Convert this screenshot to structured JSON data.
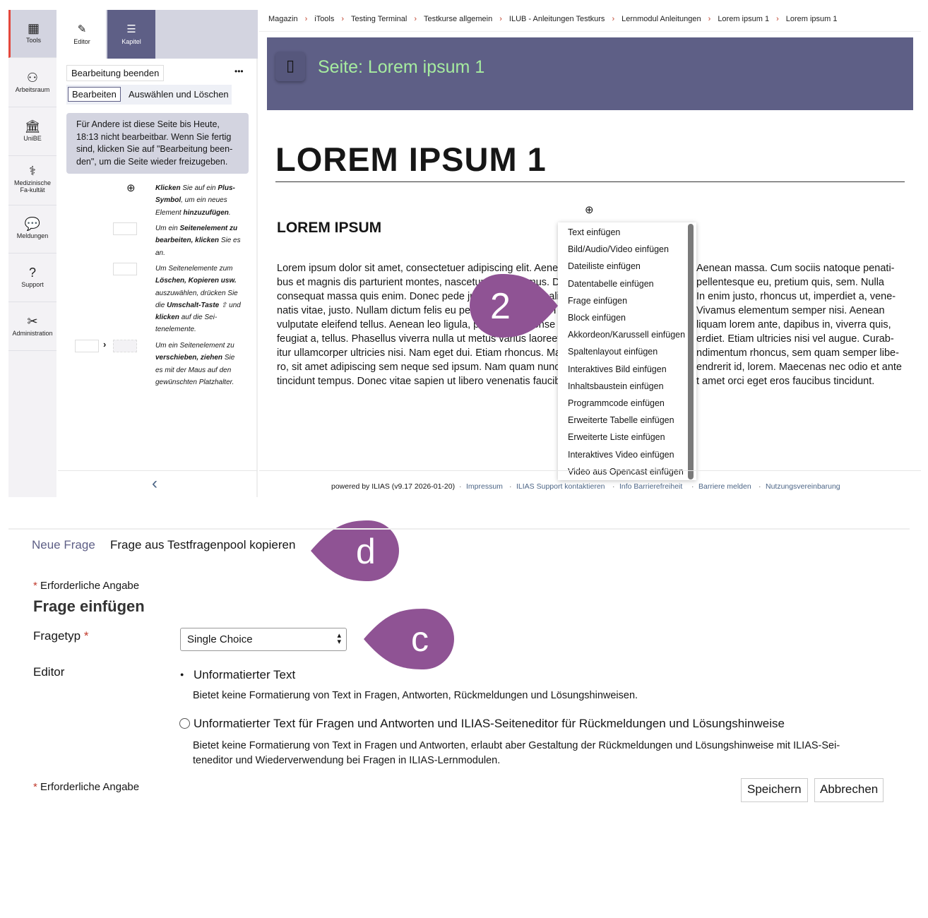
{
  "sidebar": {
    "items": [
      {
        "label": "Tools",
        "icon": "grid-icon"
      },
      {
        "label": "Arbeitsraum",
        "icon": "user-icon"
      },
      {
        "label": "UniBE",
        "icon": "building-icon"
      },
      {
        "label": "Medizinische Fa-kultät",
        "icon": "caduceus-icon"
      },
      {
        "label": "Meldungen",
        "icon": "chat-icon"
      },
      {
        "label": "Support",
        "icon": "question-icon"
      },
      {
        "label": "Administration",
        "icon": "tools-icon"
      }
    ]
  },
  "panel": {
    "tabs": [
      {
        "label": "Editor"
      },
      {
        "label": "Kapitel"
      }
    ],
    "finish_button": "Bearbeitung beenden",
    "more": "•••",
    "mode_edit": "Bearbeiten",
    "mode_select": "Auswählen und Löschen",
    "note": "Für Andere ist diese Seite bis Heute, 18:13 nicht bearbeitbar. Wenn Sie fertig sind, klicken Sie auf \"Bearbeitung been-den\", um die Seite wieder freizugeben.",
    "hints": [
      "<b>Klicken</b> Sie auf ein <b>Plus-Symbol</b>, um ein neues Element <b>hinzuzufügen</b>.",
      "Um ein <b>Seitenelement zu bearbeiten, klicken</b> Sie es an.",
      "Um Seitenelemente zum <b>Löschen, Kopieren usw.</b> auszuwählen, drücken Sie die <b>Umschalt-Taste</b> ⇧ und <b>klicken</b> auf die Sei-tenelemente.",
      "Um ein Seitenelement zu <b>verschieben, ziehen</b> Sie es mit der Maus auf den gewünschten Platzhalter."
    ],
    "collapse": "‹"
  },
  "breadcrumb": [
    "Magazin",
    "iTools",
    "Testing Terminal",
    "Testkurse allgemein",
    "ILUB - Anleitungen Testkurs",
    "Lernmodul Anleitungen",
    "Lorem ipsum 1",
    "Lorem ipsum 1"
  ],
  "header": {
    "title": "Seite: Lorem ipsum 1",
    "title_color": "#a6ec9f",
    "bg": "#5e5f86"
  },
  "content": {
    "h1": "LOREM IPSUM 1",
    "h2": "LOREM IPSUM",
    "lines": [
      {
        "l": "Lorem ipsum dolor sit amet, consectetuer adipiscing elit. Aene",
        "r": "Aenean massa. Cum sociis natoque penati-"
      },
      {
        "l": "bus et magnis dis parturient montes, nascetur ridiculus mus. D",
        "r": "pellentesque eu, pretium quis, sem. Nulla"
      },
      {
        "l": "consequat massa quis enim. Donec pede justo, fringilla vel, ali",
        "r": "In enim justo, rhoncus ut, imperdiet a, vene-"
      },
      {
        "l": "natis vitae, justo. Nullam dictum felis eu pede mollis pretium. I",
        "r": "Vivamus elementum semper nisi. Aenean"
      },
      {
        "l": "vulputate eleifend tellus. Aenean leo ligula, porttitor eu, conse",
        "r": "liquam lorem ante, dapibus in, viverra quis,"
      },
      {
        "l": "feugiat a, tellus. Phasellus viverra nulla ut metus varius laoreet",
        "r": "erdiet. Etiam ultricies nisi vel augue. Curab-"
      },
      {
        "l": "itur ullamcorper ultricies nisi. Nam eget dui. Etiam rhoncus. Ma",
        "r": "ndimentum rhoncus, sem quam semper libe-"
      },
      {
        "l": "ro, sit amet adipiscing sem neque sed ipsum. Nam quam nunc",
        "r": "endrerit id, lorem. Maecenas nec odio et ante"
      },
      {
        "l": "tincidunt tempus. Donec vitae sapien ut libero venenatis faucib",
        "r": "t amet orci eget eros faucibus tincidunt."
      }
    ]
  },
  "menu": [
    "Text einfügen",
    "Bild/Audio/Video einfügen",
    "Dateiliste einfügen",
    "Datentabelle einfügen",
    "Frage einfügen",
    "Block einfügen",
    "Akkordeon/Karussell einfügen",
    "Spaltenlayout einfügen",
    "Interaktives Bild einfügen",
    "Inhaltsbaustein einfügen",
    "Programmcode einfügen",
    "Erweiterte Tabelle einfügen",
    "Erweiterte Liste einfügen",
    "Interaktives Video einfügen",
    "Video aus Opencast einfügen"
  ],
  "footer": {
    "powered": "powered by ILIAS (v9.17 2026-01-20)",
    "links": [
      "Impressum",
      "ILIAS Support kontaktieren",
      "Info Barrierefreiheit",
      "Barriere melden",
      "Nutzungsvereinbarung"
    ]
  },
  "callouts": {
    "two": "2",
    "d": "d",
    "c": "c",
    "color": "#8f5394"
  },
  "form": {
    "tabs": [
      "Neue Frage",
      "Frage aus Testfragenpool kopieren"
    ],
    "required": "Erforderliche Angabe",
    "title": "Frage einfügen",
    "fragetyp_label": "Fragetyp",
    "fragetyp_value": "Single Choice",
    "editor_label": "Editor",
    "options": [
      {
        "label": "Unformatierter Text",
        "desc": "Bietet keine Formatierung von Text in Fragen, Antworten, Rückmeldungen und Lösungshinweisen.",
        "selected": true
      },
      {
        "label": "Unformatierter Text für Fragen und Antworten und ILIAS-Seiteneditor für Rückmeldungen und Lösungshinweise",
        "desc": "Bietet keine Formatierung von Text in Fragen und Antworten, erlaubt aber Gestaltung der Rückmeldungen und Lösungshinweise mit ILIAS-Sei-teneditor und Wiederverwendung bei Fragen in ILIAS-Lernmodulen.",
        "selected": false
      }
    ],
    "save": "Speichern",
    "cancel": "Abbrechen"
  }
}
